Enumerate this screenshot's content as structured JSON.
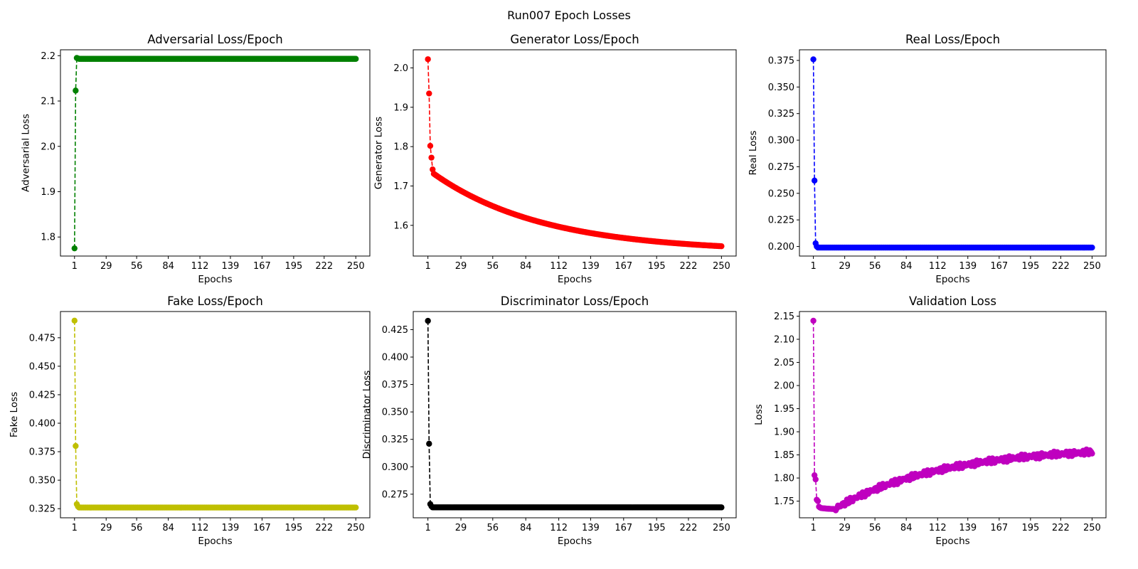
{
  "figure_title": "Run007 Epoch Losses",
  "chart_data": [
    {
      "type": "line",
      "title": "Adversarial Loss/Epoch",
      "xlabel": "Epochs",
      "ylabel": "Adversarial Loss",
      "color": "#008000",
      "line_style": "dashed",
      "marker": "circle",
      "x_range": [
        1,
        250
      ],
      "xticks": [
        1,
        29,
        56,
        84,
        112,
        139,
        167,
        195,
        222,
        250
      ],
      "ylim": [
        1.758,
        2.213
      ],
      "yticks": [
        1.8,
        1.9,
        2.0,
        2.1,
        2.2
      ],
      "ytick_labels": [
        "1.8",
        "1.9",
        "2.0",
        "2.1",
        "2.2"
      ],
      "head": [
        1.775,
        2.123,
        2.195,
        2.194
      ],
      "tail": {
        "start": 2.193,
        "end": 2.193,
        "shape": "flat"
      }
    },
    {
      "type": "line",
      "title": "Generator Loss/Epoch",
      "xlabel": "Epochs",
      "ylabel": "Generator Loss",
      "color": "#ff0000",
      "line_style": "dashed",
      "marker": "circle",
      "x_range": [
        1,
        250
      ],
      "xticks": [
        1,
        29,
        56,
        84,
        112,
        139,
        167,
        195,
        222,
        250
      ],
      "ylim": [
        1.522,
        2.046
      ],
      "yticks": [
        1.6,
        1.7,
        1.8,
        1.9,
        2.0
      ],
      "ytick_labels": [
        "1.6",
        "1.7",
        "1.8",
        "1.9",
        "2.0"
      ],
      "head": [
        2.022,
        1.935,
        1.802,
        1.772,
        1.742
      ],
      "tail": {
        "start": 1.731,
        "end": 1.547,
        "shape": "decay",
        "rate": 2.6
      }
    },
    {
      "type": "line",
      "title": "Real Loss/Epoch",
      "xlabel": "Epochs",
      "ylabel": "Real Loss",
      "color": "#0000ff",
      "line_style": "dashed",
      "marker": "circle",
      "x_range": [
        1,
        250
      ],
      "xticks": [
        1,
        29,
        56,
        84,
        112,
        139,
        167,
        195,
        222,
        250
      ],
      "ylim": [
        0.191,
        0.385
      ],
      "yticks": [
        0.2,
        0.225,
        0.25,
        0.275,
        0.3,
        0.325,
        0.35,
        0.375
      ],
      "ytick_labels": [
        "0.200",
        "0.225",
        "0.250",
        "0.275",
        "0.300",
        "0.325",
        "0.350",
        "0.375"
      ],
      "head": [
        0.376,
        0.262,
        0.203,
        0.2
      ],
      "tail": {
        "start": 0.199,
        "end": 0.199,
        "shape": "flat"
      }
    },
    {
      "type": "line",
      "title": "Fake Loss/Epoch",
      "xlabel": "Epochs",
      "ylabel": "Fake Loss",
      "color": "#bfbf00",
      "line_style": "dashed",
      "marker": "circle",
      "x_range": [
        1,
        250
      ],
      "xticks": [
        1,
        29,
        56,
        84,
        112,
        139,
        167,
        195,
        222,
        250
      ],
      "ylim": [
        0.317,
        0.498
      ],
      "yticks": [
        0.325,
        0.35,
        0.375,
        0.4,
        0.425,
        0.45,
        0.475
      ],
      "ytick_labels": [
        "0.325",
        "0.350",
        "0.375",
        "0.400",
        "0.425",
        "0.450",
        "0.475"
      ],
      "head": [
        0.49,
        0.38,
        0.329,
        0.327
      ],
      "tail": {
        "start": 0.326,
        "end": 0.326,
        "shape": "flat"
      }
    },
    {
      "type": "line",
      "title": "Discriminator Loss/Epoch",
      "xlabel": "Epochs",
      "ylabel": "Discriminator Loss",
      "color": "#000000",
      "line_style": "dashed",
      "marker": "circle",
      "x_range": [
        1,
        250
      ],
      "xticks": [
        1,
        29,
        56,
        84,
        112,
        139,
        167,
        195,
        222,
        250
      ],
      "ylim": [
        0.2535,
        0.4415
      ],
      "yticks": [
        0.275,
        0.3,
        0.325,
        0.35,
        0.375,
        0.4,
        0.425
      ],
      "ytick_labels": [
        "0.275",
        "0.300",
        "0.325",
        "0.350",
        "0.375",
        "0.400",
        "0.425"
      ],
      "head": [
        0.433,
        0.321,
        0.266,
        0.264
      ],
      "tail": {
        "start": 0.263,
        "end": 0.263,
        "shape": "flat"
      }
    },
    {
      "type": "line",
      "title": "Validation Loss",
      "xlabel": "Epochs",
      "ylabel": "Loss",
      "color": "#bf00bf",
      "line_style": "dashed",
      "marker": "circle",
      "x_range": [
        1,
        250
      ],
      "xticks": [
        1,
        29,
        56,
        84,
        112,
        139,
        167,
        195,
        222,
        250
      ],
      "ylim": [
        1.714,
        2.16
      ],
      "yticks": [
        1.75,
        1.8,
        1.85,
        1.9,
        1.95,
        2.0,
        2.05,
        2.1,
        2.15
      ],
      "ytick_labels": [
        "1.75",
        "1.80",
        "1.85",
        "1.90",
        "1.95",
        "2.00",
        "2.05",
        "2.10",
        "2.15"
      ],
      "head": [
        2.14,
        1.806,
        1.797,
        1.753,
        1.75,
        1.738,
        1.736
      ],
      "tail": {
        "start": 1.735,
        "end": 1.856,
        "shape": "rise_dip",
        "dip": 1.733,
        "dip_at": 12,
        "noise": 0.004
      }
    }
  ]
}
